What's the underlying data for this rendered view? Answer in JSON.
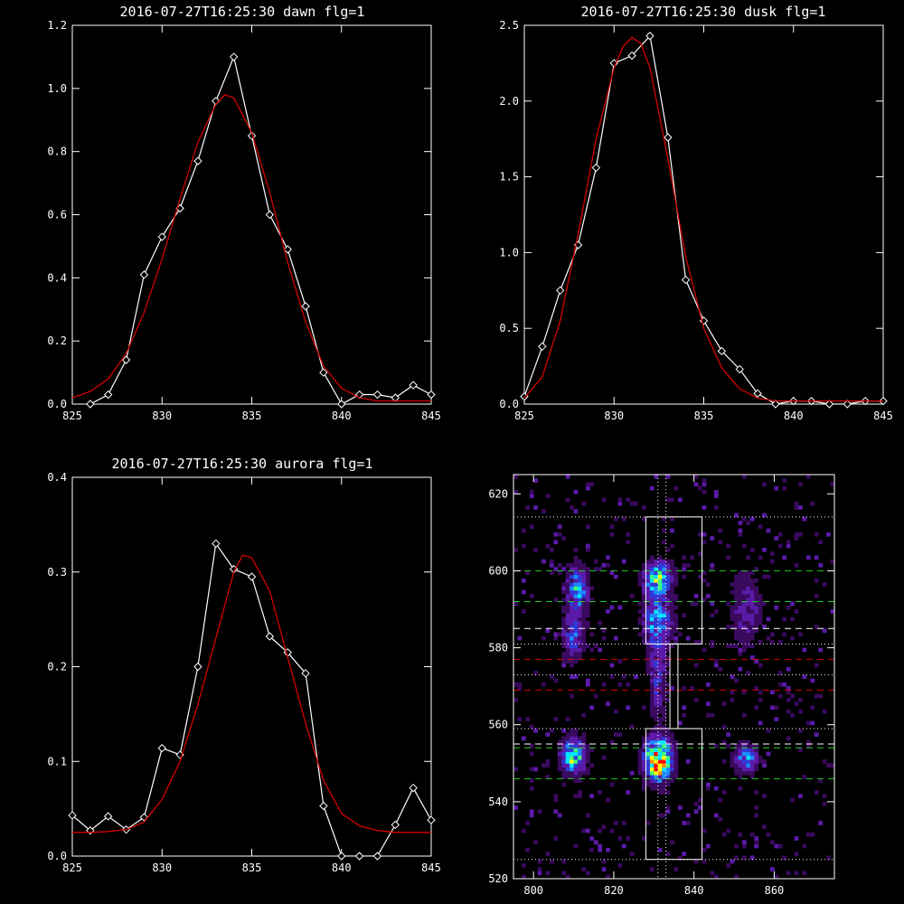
{
  "figure": {
    "background": "#000000",
    "axis_color": "#ffffff",
    "data_color": "#ffffff",
    "fit_color": "#d40000"
  },
  "chart_data": [
    {
      "type": "line",
      "title": "2016-07-27T16:25:30 dawn flg=1",
      "xlim": [
        825,
        845
      ],
      "ylim": [
        0,
        1.2
      ],
      "xticks": [
        "825",
        "830",
        "835",
        "840",
        "845"
      ],
      "yticks": [
        "0.0",
        "0.2",
        "0.4",
        "0.6",
        "0.8",
        "1.0",
        "1.2"
      ],
      "series": [
        {
          "role": "data",
          "marker": "diamond",
          "x": [
            826,
            827,
            828,
            829,
            830,
            831,
            832,
            833,
            834,
            835,
            836,
            837,
            838,
            839,
            840,
            841,
            842,
            843,
            844,
            845
          ],
          "y": [
            0.0,
            0.03,
            0.14,
            0.41,
            0.53,
            0.62,
            0.77,
            0.96,
            1.1,
            0.85,
            0.6,
            0.49,
            0.31,
            0.1,
            0.0,
            0.03,
            0.03,
            0.02,
            0.06,
            0.03
          ]
        },
        {
          "role": "fit",
          "x": [
            825,
            826,
            827,
            828,
            829,
            830,
            831,
            832,
            833,
            833.5,
            834,
            835,
            836,
            837,
            838,
            839,
            840,
            841,
            842,
            843,
            844,
            845
          ],
          "y": [
            0.02,
            0.04,
            0.08,
            0.16,
            0.29,
            0.46,
            0.65,
            0.83,
            0.95,
            0.98,
            0.97,
            0.86,
            0.67,
            0.45,
            0.26,
            0.12,
            0.05,
            0.02,
            0.01,
            0.01,
            0.01,
            0.01
          ]
        }
      ]
    },
    {
      "type": "line",
      "title": "2016-07-27T16:25:30 dusk flg=1",
      "xlim": [
        825,
        845
      ],
      "ylim": [
        0,
        2.5
      ],
      "xticks": [
        "825",
        "830",
        "835",
        "840",
        "845"
      ],
      "yticks": [
        "0.0",
        "0.5",
        "1.0",
        "1.5",
        "2.0",
        "2.5"
      ],
      "series": [
        {
          "role": "data",
          "marker": "diamond",
          "x": [
            825,
            826,
            827,
            828,
            829,
            830,
            831,
            832,
            833,
            834,
            835,
            836,
            837,
            838,
            839,
            840,
            841,
            842,
            843,
            844,
            845
          ],
          "y": [
            0.05,
            0.38,
            0.75,
            1.05,
            1.56,
            2.25,
            2.3,
            2.43,
            1.76,
            0.82,
            0.55,
            0.35,
            0.23,
            0.07,
            0.0,
            0.02,
            0.02,
            0.0,
            0.0,
            0.02,
            0.02
          ]
        },
        {
          "role": "fit",
          "x": [
            825,
            826,
            827,
            828,
            829,
            830,
            830.5,
            831,
            831.5,
            832,
            833,
            834,
            835,
            836,
            837,
            838,
            839,
            840,
            841,
            842,
            843,
            844,
            845
          ],
          "y": [
            0.04,
            0.18,
            0.55,
            1.12,
            1.75,
            2.22,
            2.36,
            2.42,
            2.38,
            2.22,
            1.62,
            0.97,
            0.5,
            0.24,
            0.1,
            0.04,
            0.02,
            0.02,
            0.02,
            0.02,
            0.02,
            0.02,
            0.02
          ]
        }
      ]
    },
    {
      "type": "line",
      "title": "2016-07-27T16:25:30 aurora flg=1",
      "xlim": [
        825,
        845
      ],
      "ylim": [
        0,
        0.4
      ],
      "xticks": [
        "825",
        "830",
        "835",
        "840",
        "845"
      ],
      "yticks": [
        "0.0",
        "0.1",
        "0.2",
        "0.3",
        "0.4"
      ],
      "series": [
        {
          "role": "data",
          "marker": "diamond",
          "x": [
            825,
            826,
            827,
            828,
            829,
            830,
            831,
            832,
            833,
            834,
            835,
            836,
            837,
            838,
            839,
            840,
            841,
            842,
            843,
            844,
            845
          ],
          "y": [
            0.043,
            0.027,
            0.042,
            0.028,
            0.041,
            0.114,
            0.107,
            0.2,
            0.33,
            0.303,
            0.295,
            0.232,
            0.215,
            0.193,
            0.053,
            0.0,
            0.0,
            0.0,
            0.033,
            0.072,
            0.038
          ]
        },
        {
          "role": "fit",
          "x": [
            825,
            826,
            827,
            828,
            829,
            830,
            831,
            832,
            833,
            834,
            834.5,
            835,
            836,
            837,
            838,
            839,
            840,
            841,
            842,
            843,
            844,
            845
          ],
          "y": [
            0.025,
            0.025,
            0.026,
            0.028,
            0.036,
            0.06,
            0.1,
            0.16,
            0.23,
            0.3,
            0.318,
            0.315,
            0.28,
            0.21,
            0.14,
            0.08,
            0.045,
            0.032,
            0.027,
            0.025,
            0.025,
            0.025
          ]
        }
      ]
    },
    {
      "type": "heatmap",
      "xlim": [
        795,
        875
      ],
      "ylim": [
        520,
        625
      ],
      "xticks": [
        {
          "v": 800,
          "label": "800"
        },
        {
          "v": 820,
          "label": "820"
        },
        {
          "v": 840,
          "label": "840"
        },
        {
          "v": 860,
          "label": "860"
        }
      ],
      "yticks": [
        {
          "v": 520,
          "label": "520"
        },
        {
          "v": 540,
          "label": "540"
        },
        {
          "v": 560,
          "label": "560"
        },
        {
          "v": 580,
          "label": "580"
        },
        {
          "v": 600,
          "label": "600"
        },
        {
          "v": 620,
          "label": "620"
        }
      ],
      "colorscale": [
        "#000000",
        "#3a0a5e",
        "#5b1aa8",
        "#2f3ad8",
        "#1a8cff",
        "#00e6ff",
        "#3cff78",
        "#ffff00",
        "#ff8c00",
        "#ff0000"
      ],
      "blobs": [
        {
          "cx": 831,
          "cy": 551,
          "sx": 2.2,
          "sy": 3.5,
          "a": 1.0
        },
        {
          "cx": 831,
          "cy": 598,
          "sx": 2.3,
          "sy": 2.8,
          "a": 0.6
        },
        {
          "cx": 831,
          "cy": 587,
          "sx": 2.3,
          "sy": 4.5,
          "a": 0.45
        },
        {
          "cx": 810,
          "cy": 552,
          "sx": 2.0,
          "sy": 3.0,
          "a": 0.65
        },
        {
          "cx": 811,
          "cy": 595,
          "sx": 1.8,
          "sy": 4.0,
          "a": 0.45
        },
        {
          "cx": 810,
          "cy": 583,
          "sx": 1.8,
          "sy": 4.0,
          "a": 0.35
        },
        {
          "cx": 853,
          "cy": 551,
          "sx": 2.0,
          "sy": 2.5,
          "a": 0.4
        },
        {
          "cx": 831,
          "cy": 572,
          "sx": 1.5,
          "sy": 6.0,
          "a": 0.28
        },
        {
          "cx": 853,
          "cy": 590,
          "sx": 2.5,
          "sy": 6.0,
          "a": 0.22
        }
      ],
      "hlines": [
        {
          "y": 600,
          "color": "#22cc22",
          "style": "dashed"
        },
        {
          "y": 592,
          "color": "#22cc22",
          "style": "dashed"
        },
        {
          "y": 585,
          "color": "#ffffff",
          "style": "dashed"
        },
        {
          "y": 577,
          "color": "#d40000",
          "style": "dashed"
        },
        {
          "y": 569,
          "color": "#d40000",
          "style": "dashed"
        },
        {
          "y": 555,
          "color": "#ffffff",
          "style": "dashed"
        },
        {
          "y": 554,
          "color": "#22cc22",
          "style": "dashed"
        },
        {
          "y": 546,
          "color": "#22cc22",
          "style": "dashed"
        },
        {
          "y": 614,
          "color": "#ffffff",
          "style": "dotted"
        },
        {
          "y": 581,
          "color": "#ffffff",
          "style": "dotted"
        },
        {
          "y": 573,
          "color": "#ffffff",
          "style": "dotted"
        },
        {
          "y": 559,
          "color": "#ffffff",
          "style": "dotted"
        },
        {
          "y": 525,
          "color": "#ffffff",
          "style": "dotted"
        }
      ],
      "vlines": [
        {
          "x": 831,
          "color": "#ffffff",
          "style": "dotted"
        },
        {
          "x": 833,
          "color": "#ffffff",
          "style": "dotted"
        }
      ],
      "boxes": [
        {
          "x0": 828,
          "x1": 842,
          "y0": 581,
          "y1": 614
        },
        {
          "x0": 828,
          "x1": 842,
          "y0": 525,
          "y1": 559
        },
        {
          "x0": 834,
          "x1": 836,
          "y0": 559,
          "y1": 581
        }
      ]
    }
  ]
}
